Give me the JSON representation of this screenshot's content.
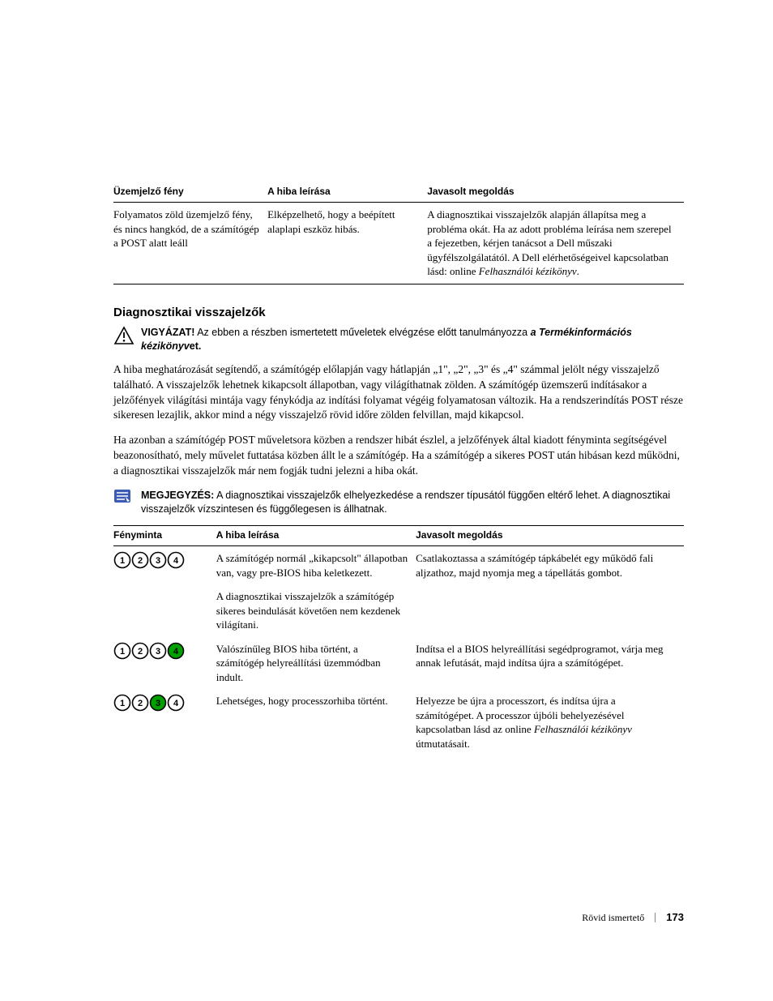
{
  "topTable": {
    "headers": [
      "Üzemjelző fény",
      "A hiba leírása",
      "Javasolt megoldás"
    ],
    "row": {
      "c1": "Folyamatos zöld üzemjelző fény, és nincs hangkód, de a számítógép a POST alatt leáll",
      "c2": "Elképzelhető, hogy a beépített alaplapi eszköz hibás.",
      "c3_pre": "A diagnosztikai visszajelzők alapján állapítsa meg a probléma okát. Ha az adott probléma leírása nem szerepel a fejezetben, kérjen tanácsot a Dell műszaki ügyfélszolgálatától. A Dell elérhetőségeivel kapcsolatban lásd: online ",
      "c3_italic": "Felhasználói kézikönyv",
      "c3_post": "."
    }
  },
  "sectionTitle": "Diagnosztikai visszajelzők",
  "caution": {
    "label": "VIGYÁZAT!",
    "text_pre": " Az ebben a részben ismertetett műveletek elvégzése előtt tanulmányozza ",
    "italic": "a Termékinformációs kézikönyv",
    "text_post": "et."
  },
  "para1": "A hiba meghatározását segítendő, a számítógép előlapján vagy hátlapján „1\", „2\", „3\" és „4\" számmal jelölt négy visszajelző található. A visszajelzők lehetnek kikapcsolt állapotban, vagy világíthatnak zölden. A számítógép üzemszerű indításakor a jelzőfények világítási mintája vagy fénykódja az indítási folyamat végéig folyamatosan változik. Ha a rendszerindítás POST része sikeresen lezajlik, akkor mind a négy visszajelző rövid időre zölden felvillan, majd kikapcsol.",
  "para2": "Ha azonban a számítógép POST műveletsora közben a rendszer hibát észlel, a jelzőfények által kiadott fényminta segítségével beazonosítható, mely művelet futtatása közben állt le a számítógép. Ha a számítógép a sikeres POST után hibásan kezd működni, a diagnosztikai visszajelzők már nem fogják tudni jelezni a hiba okát.",
  "note": {
    "label": "MEGJEGYZÉS:",
    "text": " A diagnosztikai visszajelzők elhelyezkedése a rendszer típusától függően eltérő lehet. A diagnosztikai visszajelzők vízszintesen és függőlegesen is állhatnak."
  },
  "diagTable": {
    "headers": [
      "Fényminta",
      "A hiba leírása",
      "Javasolt megoldás"
    ],
    "colors": {
      "off_stroke": "#000000",
      "off_fill": "#ffffff",
      "on_fill": "#00a000"
    },
    "rows": [
      {
        "lights": [
          false,
          false,
          false,
          false
        ],
        "desc": "A számítógép normál „kikapcsolt\" állapotban van, vagy pre-BIOS hiba keletkezett.",
        "sub": "A diagnosztikai visszajelzők a számítógép sikeres beindulását követően nem kezdenek világítani.",
        "sol_pre": "Csatlakoztassa a számítógép tápkábelét egy működő fali aljzathoz, majd nyomja meg a tápellátás gombot.",
        "sol_italic": "",
        "sol_post": ""
      },
      {
        "lights": [
          false,
          false,
          false,
          true
        ],
        "desc": "Valószínűleg BIOS hiba történt, a számítógép helyreállítási üzemmódban indult.",
        "sub": "",
        "sol_pre": "Indítsa el a BIOS helyreállítási segédprogramot, várja meg annak lefutását, majd indítsa újra a számítógépet.",
        "sol_italic": "",
        "sol_post": ""
      },
      {
        "lights": [
          false,
          false,
          true,
          false
        ],
        "desc": "Lehetséges, hogy processzorhiba történt.",
        "sub": "",
        "sol_pre": "Helyezze be újra a processzort, és indítsa újra a számítógépet. A processzor újbóli behelyezésével kapcsolatban lásd az online ",
        "sol_italic": "Felhasználói kézikönyv",
        "sol_post": " útmutatásait."
      }
    ]
  },
  "footer": {
    "text": "Rövid ismertető",
    "page": "173"
  }
}
